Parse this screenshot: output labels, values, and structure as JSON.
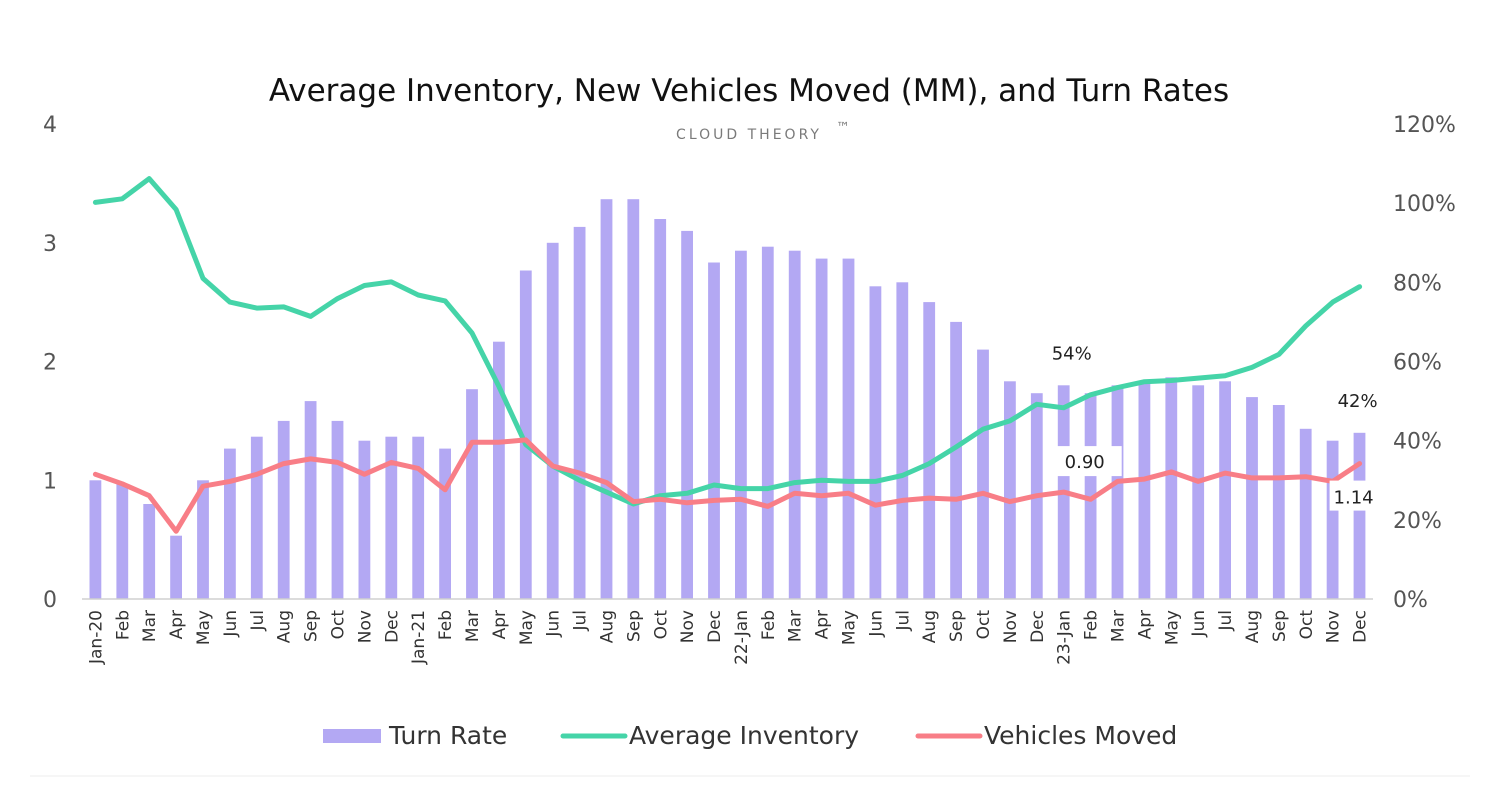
{
  "chart_data": {
    "type": "bar-line-combo",
    "title": "Average Inventory, New Vehicles Moved (MM), and Turn Rates",
    "brand": "CLOUD THEORY",
    "brand_mark": "™",
    "categories": [
      "Jan-20",
      "Feb",
      "Mar",
      "Apr",
      "May",
      "Jun",
      "Jul",
      "Aug",
      "Sep",
      "Oct",
      "Nov",
      "Dec",
      "Jan-21",
      "Feb",
      "Mar",
      "Apr",
      "May",
      "Jun",
      "Jul",
      "Aug",
      "Sep",
      "Oct",
      "Nov",
      "Dec",
      "22-Jan",
      "Feb",
      "Mar",
      "Apr",
      "May",
      "Jun",
      "Jul",
      "Aug",
      "Sep",
      "Oct",
      "Nov",
      "Dec",
      "23-Jan",
      "Feb",
      "Mar",
      "Apr",
      "May",
      "Jun",
      "Jul",
      "Aug",
      "Sep",
      "Oct",
      "Nov",
      "Dec"
    ],
    "left_axis": {
      "ylim": [
        0,
        4
      ],
      "ticks": [
        "0",
        "1",
        "2",
        "3",
        "4"
      ]
    },
    "right_axis": {
      "ylim": [
        0,
        120
      ],
      "ticks": [
        "0%",
        "20%",
        "40%",
        "60%",
        "80%",
        "100%",
        "120%"
      ]
    },
    "series": [
      {
        "name": "Turn Rate",
        "type": "bar",
        "axis": "right",
        "color": "#b3a8f3",
        "values": [
          30,
          29,
          24,
          16,
          30,
          38,
          41,
          45,
          50,
          45,
          40,
          41,
          41,
          38,
          53,
          65,
          83,
          90,
          94,
          101,
          101,
          96,
          93,
          85,
          88,
          89,
          88,
          86,
          86,
          79,
          80,
          75,
          70,
          63,
          55,
          52,
          54,
          52,
          54,
          55,
          56,
          54,
          55,
          51,
          49,
          43,
          40,
          42
        ]
      },
      {
        "name": "Average Inventory",
        "type": "line",
        "axis": "left",
        "color": "#45d4a8",
        "values": [
          3.34,
          3.37,
          3.54,
          3.28,
          2.7,
          2.5,
          2.45,
          2.46,
          2.38,
          2.53,
          2.64,
          2.67,
          2.56,
          2.51,
          2.24,
          1.79,
          1.3,
          1.12,
          1.0,
          0.9,
          0.8,
          0.87,
          0.89,
          0.96,
          0.93,
          0.93,
          0.98,
          1.0,
          0.99,
          0.99,
          1.04,
          1.14,
          1.28,
          1.43,
          1.5,
          1.64,
          1.61,
          1.72,
          1.78,
          1.83,
          1.84,
          1.86,
          1.88,
          1.95,
          2.06,
          2.3,
          2.5,
          2.63
        ]
      },
      {
        "name": "Vehicles Moved",
        "type": "line",
        "axis": "left",
        "color": "#f87e87",
        "values": [
          1.05,
          0.97,
          0.87,
          0.57,
          0.95,
          0.99,
          1.05,
          1.14,
          1.18,
          1.15,
          1.05,
          1.15,
          1.1,
          0.92,
          1.32,
          1.32,
          1.34,
          1.12,
          1.06,
          0.98,
          0.82,
          0.84,
          0.81,
          0.83,
          0.84,
          0.78,
          0.89,
          0.87,
          0.89,
          0.79,
          0.83,
          0.85,
          0.84,
          0.89,
          0.82,
          0.87,
          0.9,
          0.84,
          0.99,
          1.01,
          1.07,
          0.99,
          1.06,
          1.02,
          1.02,
          1.03,
          0.99,
          1.14
        ]
      }
    ],
    "annotations": [
      {
        "text": "54%",
        "index": 36,
        "series": "Turn Rate"
      },
      {
        "text": "0.90",
        "index": 36,
        "series": "Vehicles Moved"
      },
      {
        "text": "42%",
        "index": 47,
        "series": "Turn Rate"
      },
      {
        "text": "1.14",
        "index": 47,
        "series": "Vehicles Moved"
      }
    ],
    "legend": {
      "position": "bottom",
      "items": [
        "Turn Rate",
        "Average Inventory",
        "Vehicles Moved"
      ]
    }
  }
}
